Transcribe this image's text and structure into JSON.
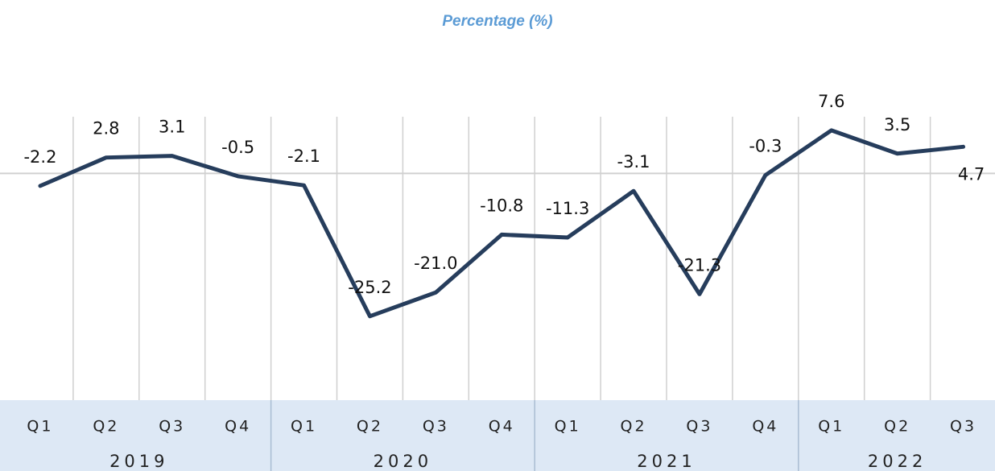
{
  "chart_data": {
    "type": "line",
    "title": "Percentage (%)",
    "groups": [
      {
        "name": "2019",
        "categories": [
          "Q1",
          "Q2",
          "Q3",
          "Q4"
        ]
      },
      {
        "name": "2020",
        "categories": [
          "Q1",
          "Q2",
          "Q3",
          "Q4"
        ]
      },
      {
        "name": "2021",
        "categories": [
          "Q1",
          "Q2",
          "Q3",
          "Q4"
        ]
      },
      {
        "name": "2022",
        "categories": [
          "Q1",
          "Q2",
          "Q3"
        ]
      }
    ],
    "values": [
      -2.2,
      2.8,
      3.1,
      -0.5,
      -2.1,
      -25.2,
      -21.0,
      -10.8,
      -11.3,
      -3.1,
      -21.3,
      -0.3,
      7.6,
      3.5,
      4.7
    ],
    "value_labels": [
      "-2.2",
      "2.8",
      "3.1",
      "-0.5",
      "-2.1",
      "-25.2",
      "-21.0",
      "-10.8",
      "-11.3",
      "-3.1",
      "-21.3",
      "-0.3",
      "7.6",
      "3.5",
      "4.7"
    ],
    "color": "#263d5c",
    "ylim": [
      -40,
      10
    ]
  }
}
